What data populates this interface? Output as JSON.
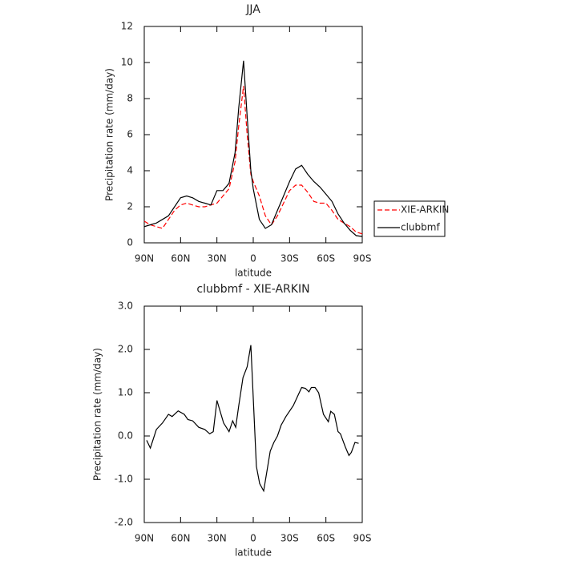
{
  "chart_data": [
    {
      "type": "line",
      "title": "JJA",
      "xlabel": "latitude",
      "ylabel": "Precipitation rate (mm/day)",
      "x": [
        90,
        85,
        80,
        75,
        70,
        65,
        60,
        55,
        50,
        45,
        40,
        35,
        30,
        25,
        20,
        15,
        12,
        8,
        5,
        2,
        0,
        -5,
        -10,
        -15,
        -20,
        -25,
        -30,
        -35,
        -40,
        -45,
        -50,
        -55,
        -60,
        -65,
        -70,
        -75,
        -80,
        -85,
        -90
      ],
      "series": [
        {
          "name": "XIE-ARKIN",
          "color": "#ff0000",
          "dash": true,
          "values": [
            1.2,
            1.0,
            0.9,
            0.8,
            1.3,
            1.8,
            2.1,
            2.2,
            2.1,
            2.0,
            2.0,
            2.1,
            2.2,
            2.6,
            3.0,
            4.5,
            6.5,
            8.7,
            6.0,
            3.8,
            3.4,
            2.6,
            1.5,
            1.0,
            1.5,
            2.2,
            2.9,
            3.2,
            3.2,
            2.8,
            2.3,
            2.2,
            2.2,
            1.8,
            1.3,
            1.1,
            0.9,
            0.6,
            0.5
          ]
        },
        {
          "name": "clubbmf",
          "color": "#000000",
          "dash": false,
          "values": [
            0.9,
            1.0,
            1.1,
            1.3,
            1.5,
            2.0,
            2.5,
            2.6,
            2.5,
            2.3,
            2.2,
            2.1,
            2.9,
            2.9,
            3.3,
            5.0,
            7.5,
            10.1,
            7.0,
            4.0,
            3.0,
            1.3,
            0.8,
            1.0,
            1.8,
            2.6,
            3.4,
            4.1,
            4.3,
            3.8,
            3.4,
            3.1,
            2.7,
            2.3,
            1.6,
            1.1,
            0.7,
            0.4,
            0.35
          ]
        }
      ],
      "xlim": [
        90,
        -90
      ],
      "xticks": [
        {
          "value": 90,
          "label": "90N"
        },
        {
          "value": 60,
          "label": "60N"
        },
        {
          "value": 30,
          "label": "30N"
        },
        0,
        {
          "value": -30,
          "label": "30S"
        },
        {
          "value": -60,
          "label": "60S"
        },
        {
          "value": -90,
          "label": "90S"
        }
      ],
      "ylim": [
        0,
        12
      ],
      "yticks": [
        0,
        2,
        4,
        6,
        8,
        10,
        12
      ],
      "legend": "right"
    },
    {
      "type": "line",
      "title": "clubbmf - XIE-ARKIN",
      "xlabel": "latitude",
      "ylabel": "Precipitation rate (mm/day)",
      "x": [
        88,
        85,
        80,
        75,
        70,
        67,
        62,
        57,
        54,
        50,
        45,
        40,
        36,
        33,
        30,
        24.5,
        20,
        17,
        14.5,
        12,
        8.5,
        5,
        2,
        -2.6,
        -5.3,
        -8.6,
        -14,
        -17,
        -20,
        -23,
        -27,
        -33,
        -40,
        -43,
        -46,
        -48,
        -51,
        -54,
        -58,
        -62,
        -64,
        -67,
        -70,
        -72,
        -76,
        -79,
        -81,
        -84,
        -87
      ],
      "values": [
        -0.1,
        -0.28,
        0.15,
        0.3,
        0.5,
        0.45,
        0.58,
        0.5,
        0.38,
        0.35,
        0.2,
        0.15,
        0.05,
        0.1,
        0.82,
        0.3,
        0.1,
        0.35,
        0.2,
        0.7,
        1.35,
        1.6,
        2.1,
        -0.7,
        -1.1,
        -1.27,
        -0.35,
        -0.15,
        0.0,
        0.25,
        0.45,
        0.7,
        1.12,
        1.1,
        1.02,
        1.12,
        1.12,
        1.0,
        0.5,
        0.33,
        0.57,
        0.5,
        0.1,
        0.05,
        -0.25,
        -0.45,
        -0.38,
        -0.15,
        -0.17
      ],
      "color": "#000000",
      "xlim": [
        90,
        -90
      ],
      "xticks": [
        {
          "value": 90,
          "label": "90N"
        },
        {
          "value": 60,
          "label": "60N"
        },
        {
          "value": 30,
          "label": "30N"
        },
        0,
        {
          "value": -30,
          "label": "30S"
        },
        {
          "value": -60,
          "label": "60S"
        },
        {
          "value": -90,
          "label": "90S"
        }
      ],
      "ylim": [
        -2,
        3
      ],
      "yticks": [
        {
          "value": -2,
          "label": "-2.0"
        },
        {
          "value": -1,
          "label": "-1.0"
        },
        {
          "value": 0,
          "label": "0.0"
        },
        {
          "value": 1,
          "label": "1.0"
        },
        {
          "value": 2,
          "label": "2.0"
        },
        {
          "value": 3,
          "label": "3.0"
        }
      ]
    }
  ]
}
